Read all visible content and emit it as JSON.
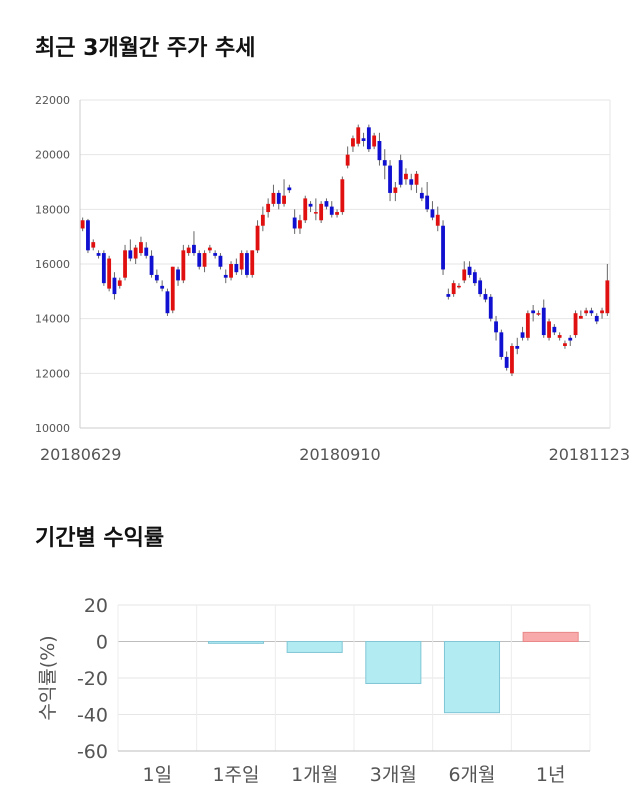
{
  "sections": {
    "price_title": "최근 3개월간 주가 추세",
    "returns_title": "기간별 수익률"
  },
  "chart_data": [
    {
      "type": "candlestick",
      "title": "최근 3개월간 주가 추세",
      "ylim": [
        10000,
        22000
      ],
      "yticks": [
        "10000",
        "12000",
        "14000",
        "16000",
        "18000",
        "20000",
        "22000"
      ],
      "xticks": [
        "20180629",
        "20180910",
        "20181123"
      ],
      "colors": {
        "up": "#e01010",
        "down": "#1010d0"
      },
      "ohlc": [
        [
          17300,
          17700,
          17200,
          17600
        ],
        [
          17600,
          17650,
          16400,
          16500
        ],
        [
          16600,
          16900,
          16500,
          16800
        ],
        [
          16400,
          16500,
          16200,
          16300
        ],
        [
          16400,
          16500,
          15200,
          15300
        ],
        [
          15100,
          16300,
          15000,
          16200
        ],
        [
          15500,
          15700,
          14700,
          14900
        ],
        [
          15200,
          15500,
          15100,
          15400
        ],
        [
          15500,
          16700,
          15400,
          16500
        ],
        [
          16500,
          16900,
          16100,
          16200
        ],
        [
          16200,
          16700,
          16000,
          16600
        ],
        [
          16400,
          17000,
          16300,
          16800
        ],
        [
          16600,
          16800,
          16200,
          16300
        ],
        [
          16300,
          16500,
          15500,
          15600
        ],
        [
          15600,
          15800,
          15300,
          15400
        ],
        [
          15200,
          15400,
          15000,
          15100
        ],
        [
          15000,
          15100,
          14100,
          14200
        ],
        [
          14300,
          15900,
          14200,
          15900
        ],
        [
          15800,
          15900,
          15200,
          15400
        ],
        [
          15400,
          16700,
          15300,
          16500
        ],
        [
          16400,
          16700,
          16300,
          16600
        ],
        [
          16700,
          17200,
          16300,
          16400
        ],
        [
          16400,
          16500,
          15800,
          15900
        ],
        [
          15900,
          16500,
          15700,
          16400
        ],
        [
          16500,
          16700,
          16400,
          16600
        ],
        [
          16400,
          16500,
          16200,
          16300
        ],
        [
          16300,
          16400,
          15800,
          15900
        ],
        [
          15600,
          15800,
          15300,
          15500
        ],
        [
          15500,
          16100,
          15400,
          16000
        ],
        [
          16000,
          16200,
          15600,
          15700
        ],
        [
          15800,
          16500,
          15600,
          16400
        ],
        [
          16400,
          16500,
          15500,
          15600
        ],
        [
          15600,
          16500,
          15500,
          16500
        ],
        [
          16500,
          17600,
          16400,
          17400
        ],
        [
          17400,
          18100,
          17200,
          17800
        ],
        [
          17900,
          18400,
          17700,
          18200
        ],
        [
          18200,
          18900,
          18100,
          18600
        ],
        [
          18600,
          18700,
          18000,
          18200
        ],
        [
          18200,
          19100,
          18100,
          18500
        ],
        [
          18800,
          18900,
          18600,
          18700
        ],
        [
          17700,
          18000,
          17100,
          17300
        ],
        [
          17300,
          17800,
          17100,
          17600
        ],
        [
          17600,
          18500,
          17500,
          18400
        ],
        [
          18200,
          18300,
          17900,
          18100
        ],
        [
          17900,
          18400,
          17600,
          17900
        ],
        [
          17600,
          18300,
          17500,
          18200
        ],
        [
          18300,
          18400,
          18000,
          18100
        ],
        [
          18100,
          18300,
          17700,
          17800
        ],
        [
          17800,
          18000,
          17700,
          17900
        ],
        [
          17900,
          19200,
          17800,
          19100
        ],
        [
          19600,
          20300,
          19500,
          20000
        ],
        [
          20300,
          20700,
          20100,
          20600
        ],
        [
          20400,
          21100,
          20300,
          21000
        ],
        [
          20600,
          20800,
          20300,
          20500
        ],
        [
          21000,
          21100,
          20100,
          20200
        ],
        [
          20300,
          20800,
          20200,
          20700
        ],
        [
          20500,
          20800,
          19600,
          19800
        ],
        [
          19800,
          20200,
          19100,
          19600
        ],
        [
          19600,
          19800,
          18300,
          18600
        ],
        [
          18600,
          19000,
          18300,
          18800
        ],
        [
          19800,
          20000,
          18800,
          18900
        ],
        [
          19100,
          19500,
          18900,
          19300
        ],
        [
          19100,
          19300,
          18700,
          18900
        ],
        [
          18900,
          19400,
          18600,
          19300
        ],
        [
          18600,
          18800,
          18300,
          18400
        ],
        [
          18500,
          19000,
          17900,
          18000
        ],
        [
          18000,
          18300,
          17600,
          17700
        ],
        [
          17400,
          18100,
          17200,
          17800
        ],
        [
          17400,
          17600,
          15600,
          15800
        ],
        [
          14900,
          15100,
          14700,
          14800
        ],
        [
          14900,
          15400,
          14800,
          15300
        ],
        [
          15200,
          15300,
          15100,
          15200
        ],
        [
          15400,
          16100,
          15300,
          15800
        ],
        [
          15900,
          16100,
          15500,
          15600
        ],
        [
          15700,
          15800,
          15200,
          15300
        ],
        [
          15400,
          15500,
          14800,
          14900
        ],
        [
          14900,
          15100,
          14600,
          14700
        ],
        [
          14800,
          14900,
          13900,
          14000
        ],
        [
          13900,
          14100,
          13200,
          13500
        ],
        [
          13500,
          13600,
          12500,
          12600
        ],
        [
          12600,
          12800,
          12100,
          12200
        ],
        [
          12000,
          13100,
          11900,
          13000
        ],
        [
          13000,
          13300,
          12700,
          12900
        ],
        [
          13500,
          13700,
          13200,
          13300
        ],
        [
          13300,
          14300,
          13200,
          14200
        ],
        [
          14300,
          14500,
          13900,
          14200
        ],
        [
          14200,
          14300,
          14100,
          14200
        ],
        [
          14400,
          14700,
          13300,
          13400
        ],
        [
          13300,
          14000,
          13200,
          13900
        ],
        [
          13700,
          13800,
          13400,
          13500
        ],
        [
          13300,
          13500,
          13200,
          13400
        ],
        [
          13000,
          13200,
          12900,
          13100
        ],
        [
          13300,
          13400,
          13000,
          13200
        ],
        [
          13400,
          14300,
          13300,
          14200
        ],
        [
          14000,
          14300,
          14000,
          14100
        ],
        [
          14200,
          14400,
          14100,
          14300
        ],
        [
          14300,
          14400,
          14100,
          14200
        ],
        [
          14100,
          14200,
          13800,
          13900
        ],
        [
          14200,
          14400,
          14000,
          14300
        ],
        [
          14200,
          16000,
          14100,
          15400
        ]
      ]
    },
    {
      "type": "bar",
      "title": "기간별 수익률",
      "ylabel": "수익률(%)",
      "ylim": [
        -60,
        20
      ],
      "yticks": [
        "20",
        "0",
        "-20",
        "-40",
        "-60"
      ],
      "categories": [
        "1일",
        "1주일",
        "1개월",
        "3개월",
        "6개월",
        "1년"
      ],
      "values": [
        0,
        -1,
        -6,
        -23,
        -39,
        5
      ],
      "colors": {
        "negative_fill": "#b2ebf2",
        "negative_stroke": "#80c6d6",
        "positive_fill": "#f8aaaa",
        "positive_stroke": "#e88888"
      }
    }
  ]
}
